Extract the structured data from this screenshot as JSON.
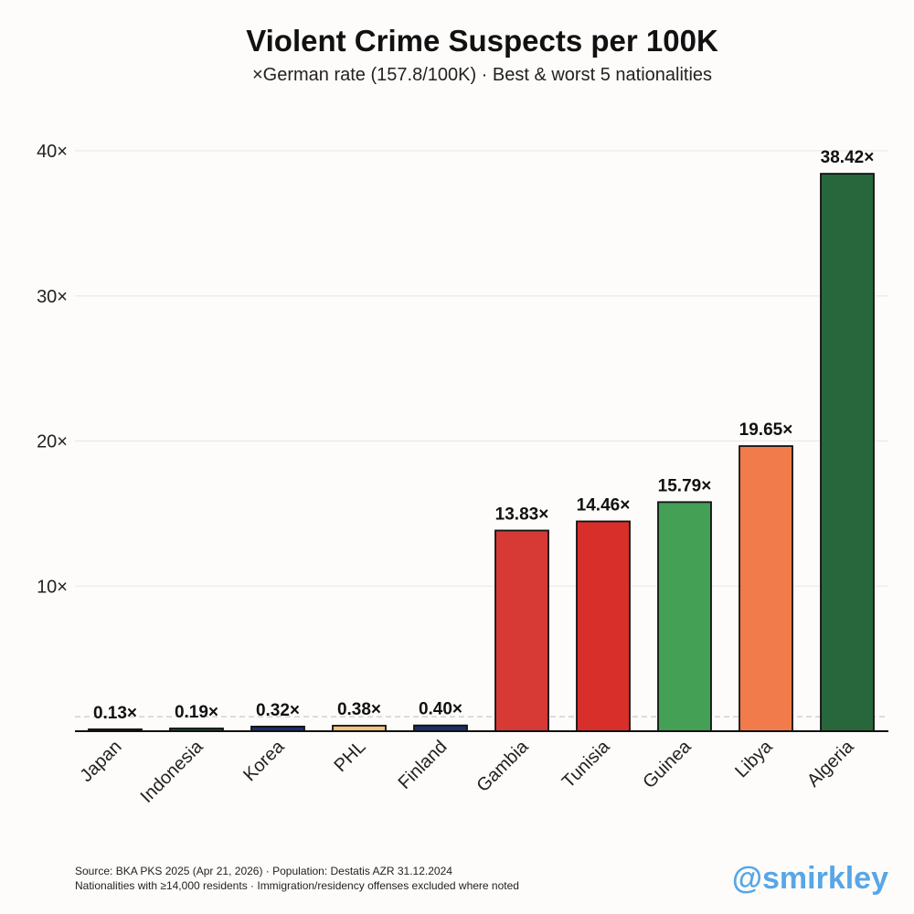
{
  "chart_data": {
    "type": "bar",
    "title": "Violent Crime Suspects per 100K",
    "subtitle": "×German rate (157.8/100K) · Best & worst 5 nationalities",
    "categories": [
      "Japan",
      "Indonesia",
      "Korea",
      "PHL",
      "Finland",
      "Gambia",
      "Tunisia",
      "Guinea",
      "Libya",
      "Algeria"
    ],
    "values": [
      0.13,
      0.19,
      0.32,
      0.38,
      0.4,
      13.83,
      14.46,
      15.79,
      19.65,
      38.42
    ],
    "value_labels": [
      "0.13×",
      "0.19×",
      "0.32×",
      "0.38×",
      "0.40×",
      "13.83×",
      "14.46×",
      "15.79×",
      "19.65×",
      "38.42×"
    ],
    "colors": [
      "#111111",
      "#1f4e3d",
      "#1c2f6b",
      "#f4c27a",
      "#1c2f6b",
      "#d73a35",
      "#d92f2a",
      "#43a055",
      "#f27b4b",
      "#28663c"
    ],
    "ylim": [
      0,
      40
    ],
    "yticks": [
      10,
      20,
      30,
      40
    ],
    "ytick_labels": [
      "10×",
      "20×",
      "30×",
      "40×"
    ],
    "reference_line": 1,
    "grid": true,
    "xlabel": "",
    "ylabel": ""
  },
  "footer": {
    "source": "Source: BKA PKS 2025 (Apr 21, 2026) · Population: Destatis AZR 31.12.2024",
    "note": "Nationalities with ≥14,000 residents · Immigration/residency offenses excluded where noted",
    "watermark": "@smirkley"
  }
}
